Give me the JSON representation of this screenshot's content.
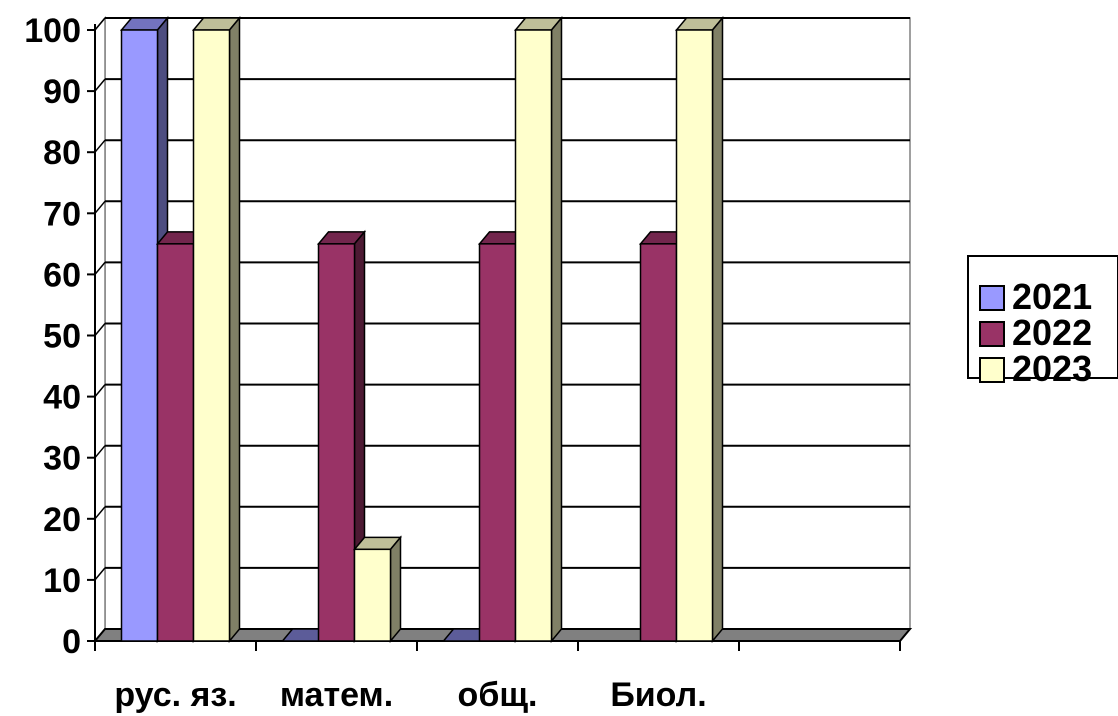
{
  "chart_data": {
    "type": "bar",
    "title": "",
    "xlabel": "",
    "ylabel": "",
    "ylim": [
      0,
      100
    ],
    "yticks": [
      0,
      10,
      20,
      30,
      40,
      50,
      60,
      70,
      80,
      90,
      100
    ],
    "grid": true,
    "legend_position": "right",
    "categories": [
      "рус. яз.",
      "матем.",
      "общ.",
      "Биол.",
      ""
    ],
    "series": [
      {
        "name": "2021",
        "color": "#9999ff",
        "values": [
          100,
          0,
          0,
          null,
          null
        ]
      },
      {
        "name": "2022",
        "color": "#993366",
        "values": [
          65,
          65,
          65,
          65,
          null
        ]
      },
      {
        "name": "2023",
        "color": "#ffffcc",
        "values": [
          100,
          15,
          100,
          100,
          null
        ]
      }
    ]
  }
}
